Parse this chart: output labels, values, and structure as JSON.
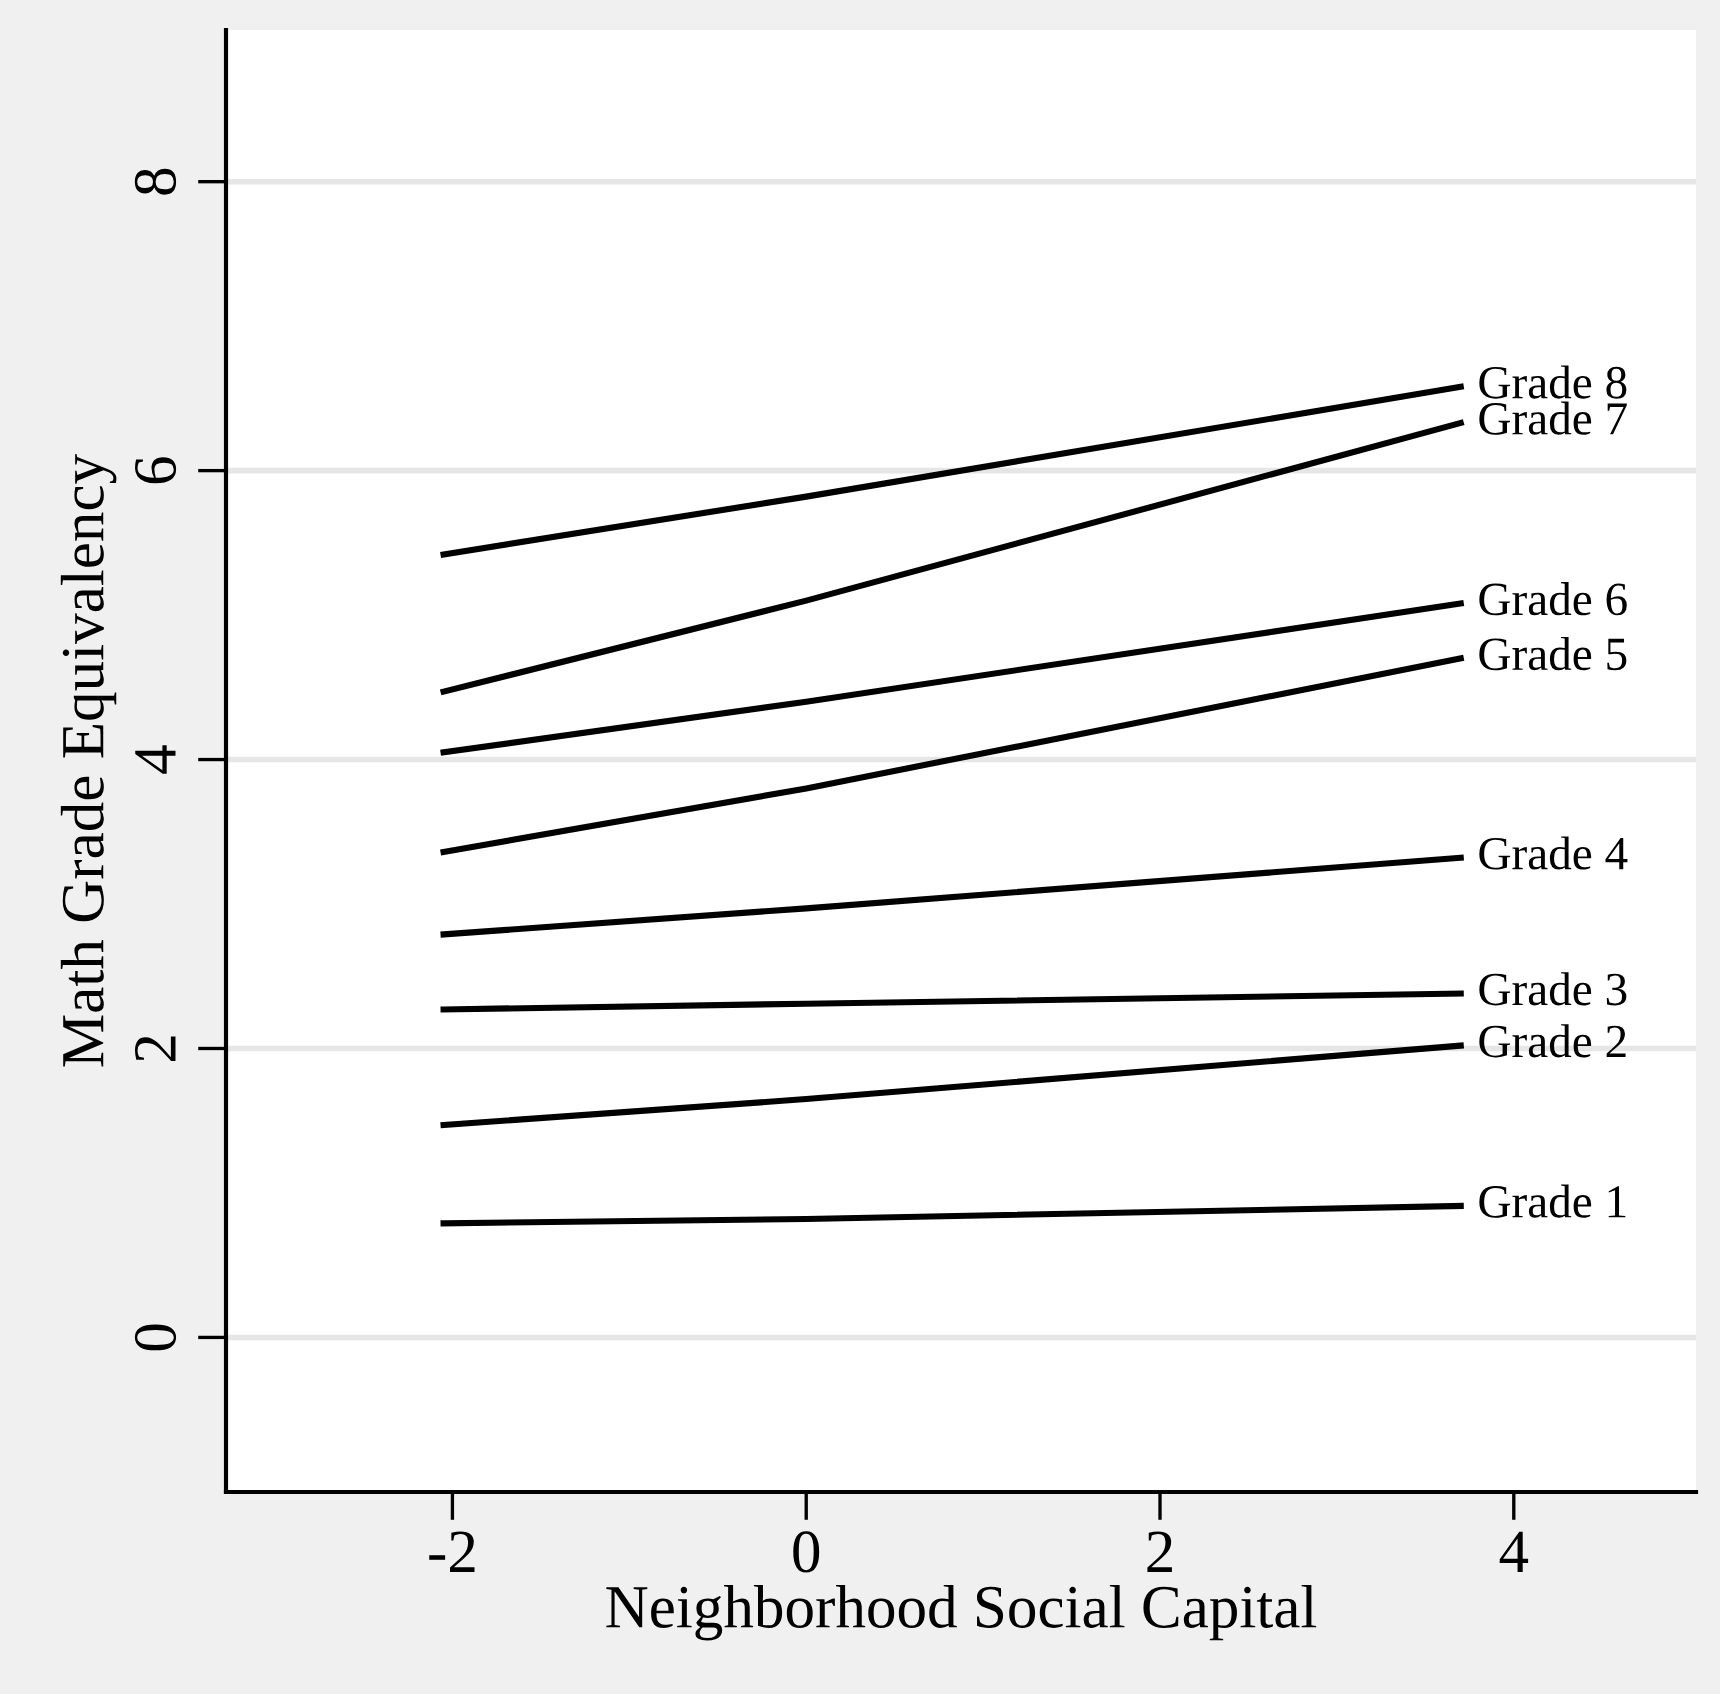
{
  "chart_data": {
    "type": "line",
    "xlabel": "Neighborhood Social Capital",
    "ylabel": "Math Grade Equivalency",
    "xlim": [
      -3.28,
      5.03
    ],
    "ylim": [
      -1.07,
      9.05
    ],
    "xticks": [
      -2,
      0,
      2,
      4
    ],
    "yticks": [
      0,
      2,
      4,
      6,
      8
    ],
    "grid": "y",
    "legend": false,
    "marker": "none",
    "line_style": "solid",
    "x": [
      -2.05,
      0,
      3.7
    ],
    "series": [
      {
        "name": "Grade 8",
        "color": "#000000",
        "values": [
          5.42,
          5.82,
          6.58
        ]
      },
      {
        "name": "Grade 7",
        "color": "#000000",
        "values": [
          4.47,
          5.1,
          6.33
        ]
      },
      {
        "name": "Grade 6",
        "color": "#000000",
        "values": [
          4.05,
          4.4,
          5.08
        ]
      },
      {
        "name": "Grade 5",
        "color": "#000000",
        "values": [
          3.36,
          3.8,
          4.7
        ]
      },
      {
        "name": "Grade 4",
        "color": "#000000",
        "values": [
          2.79,
          2.97,
          3.32
        ]
      },
      {
        "name": "Grade 3",
        "color": "#000000",
        "values": [
          2.27,
          2.31,
          2.38
        ]
      },
      {
        "name": "Grade 2",
        "color": "#000000",
        "values": [
          1.47,
          1.65,
          2.02
        ]
      },
      {
        "name": "Grade 1",
        "color": "#000000",
        "values": [
          0.79,
          0.82,
          0.91
        ]
      }
    ]
  }
}
